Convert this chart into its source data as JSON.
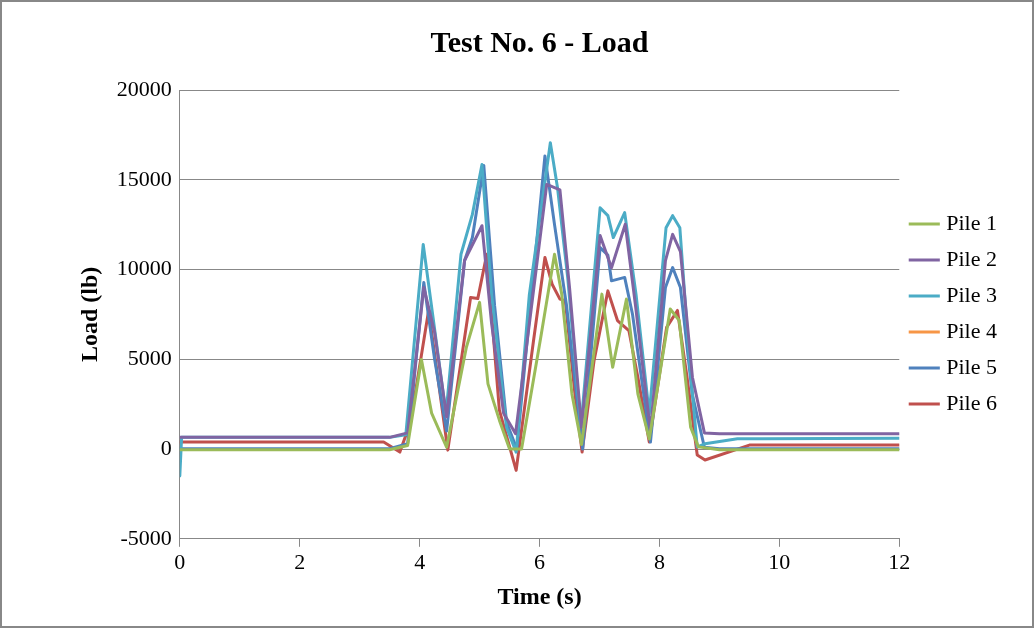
{
  "chart_data": {
    "type": "line",
    "title": "Test No. 6 - Load",
    "xlabel": "Time (s)",
    "ylabel": "Load (lb)",
    "xlim": [
      0,
      12
    ],
    "xticks": [
      0,
      2,
      4,
      6,
      8,
      10,
      12
    ],
    "ylim": [
      -5000,
      20000
    ],
    "yticks": [
      -5000,
      0,
      5000,
      10000,
      15000,
      20000
    ],
    "grid": "y",
    "legend": "right",
    "marker": "none",
    "line_style": "solid",
    "series": [
      {
        "name": "Pile 1",
        "color": "#9bbb59",
        "x": [
          0,
          0.05,
          3.5,
          3.8,
          4.03,
          4.2,
          4.45,
          4.78,
          5.0,
          5.14,
          5.33,
          5.5,
          5.7,
          6.02,
          6.25,
          6.37,
          6.54,
          6.7,
          7.04,
          7.22,
          7.45,
          7.64,
          7.83,
          8.18,
          8.33,
          8.52,
          8.65,
          9.0,
          12
        ],
        "values": [
          -40,
          -40,
          -40,
          200,
          4990,
          2000,
          100,
          5670,
          8170,
          3630,
          1610,
          0,
          0,
          6220,
          10850,
          8630,
          3070,
          250,
          8630,
          4560,
          8350,
          3070,
          560,
          7800,
          7160,
          1220,
          120,
          -40,
          -40
        ]
      },
      {
        "name": "Pile 2",
        "color": "#8064a2",
        "x": [
          0,
          0.05,
          3.5,
          3.8,
          4.07,
          4.25,
          4.45,
          4.75,
          5.04,
          5.2,
          5.4,
          5.6,
          5.85,
          6.12,
          6.34,
          6.5,
          6.7,
          7.01,
          7.2,
          7.43,
          7.6,
          7.85,
          8.1,
          8.22,
          8.35,
          8.55,
          8.75,
          9.0,
          12
        ],
        "values": [
          650,
          650,
          650,
          900,
          9000,
          6500,
          1800,
          10500,
          12440,
          7000,
          2000,
          850,
          7500,
          14740,
          14440,
          9000,
          1200,
          11890,
          10100,
          12520,
          8000,
          1000,
          10500,
          11960,
          11000,
          4000,
          900,
          850,
          850
        ]
      },
      {
        "name": "Pile 3",
        "color": "#4bacc6",
        "x": [
          0,
          0.03,
          3.5,
          3.77,
          4.06,
          4.44,
          4.69,
          4.88,
          5.04,
          5.2,
          5.45,
          5.61,
          5.83,
          6.18,
          6.3,
          6.47,
          6.69,
          7.01,
          7.14,
          7.23,
          7.42,
          7.61,
          7.83,
          8.11,
          8.22,
          8.34,
          8.5,
          8.63,
          8.76,
          9.3,
          12
        ],
        "values": [
          -1500,
          650,
          650,
          800,
          11400,
          1960,
          10850,
          13070,
          15850,
          8600,
          1200,
          -170,
          8600,
          17060,
          14550,
          9550,
          1220,
          13440,
          13000,
          11780,
          13170,
          8600,
          1960,
          12330,
          13000,
          12330,
          4940,
          110,
          300,
          570,
          600
        ]
      },
      {
        "name": "Pile 4",
        "color": "#f79646"
      },
      {
        "name": "Pile 5",
        "color": "#4f81bd",
        "x": [
          0,
          0.05,
          3.5,
          3.8,
          4.07,
          4.25,
          4.45,
          4.75,
          4.88,
          5.07,
          5.25,
          5.45,
          5.62,
          5.85,
          6.09,
          6.25,
          6.45,
          6.72,
          7.01,
          7.14,
          7.2,
          7.42,
          7.55,
          7.85,
          8.1,
          8.22,
          8.35,
          8.55,
          8.75,
          9.0,
          12
        ],
        "values": [
          20,
          20,
          20,
          300,
          9280,
          5000,
          1000,
          10500,
          11780,
          15800,
          8000,
          1500,
          0,
          8000,
          16330,
          12500,
          8000,
          0,
          11220,
          10800,
          9370,
          9560,
          7520,
          390,
          9000,
          10110,
          9000,
          3000,
          100,
          20,
          20
        ]
      },
      {
        "name": "Pile 6",
        "color": "#c0504d",
        "x": [
          0,
          0.05,
          3.4,
          3.67,
          3.85,
          4.15,
          4.47,
          4.85,
          4.97,
          5.12,
          5.33,
          5.61,
          5.9,
          6.09,
          6.21,
          6.34,
          6.43,
          6.59,
          6.71,
          6.91,
          7.14,
          7.3,
          7.49,
          7.64,
          7.83,
          8.12,
          8.3,
          8.46,
          8.63,
          8.76,
          9.5,
          12
        ],
        "values": [
          390,
          390,
          390,
          -170,
          1500,
          7720,
          -60,
          8440,
          8380,
          10850,
          2170,
          -1190,
          6050,
          10670,
          9180,
          8350,
          8270,
          3070,
          -170,
          4940,
          8810,
          7160,
          6600,
          4000,
          390,
          6780,
          7720,
          4000,
          -330,
          -610,
          220,
          220
        ]
      }
    ]
  }
}
